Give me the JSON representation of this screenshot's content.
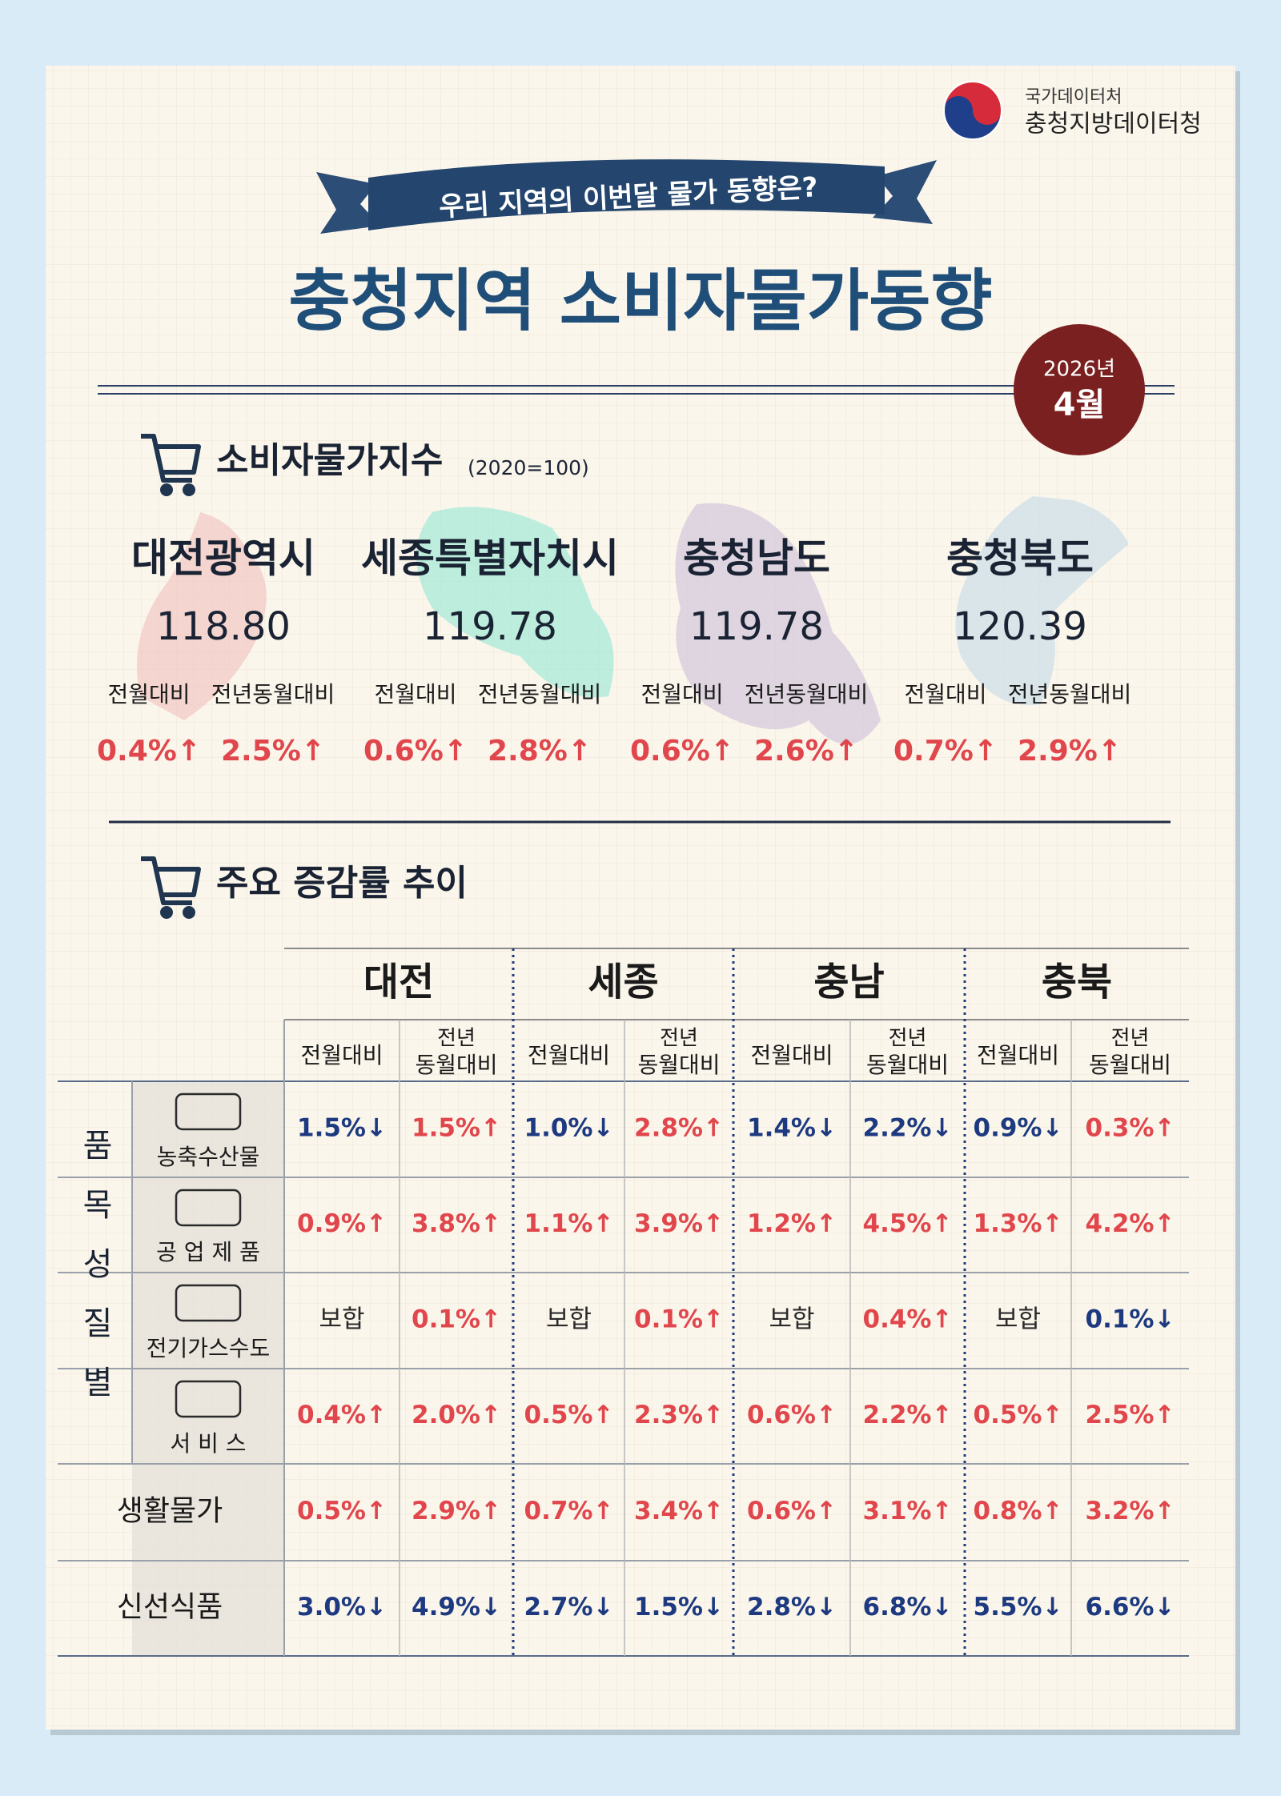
{
  "header": {
    "agency": "국가데이터처",
    "office": "충청지방데이터청",
    "banner": "우리 지역의 이번달 물가 동향은?",
    "title": "충청지역 소비자물가동향",
    "year": "2026년",
    "month": "4월"
  },
  "index_section": {
    "title": "소비자물가지수",
    "base": "(2020=100)",
    "labels": [
      "전월대비",
      "전년동월대비"
    ],
    "regions": [
      {
        "name": "대전광역시",
        "value": "118.80",
        "mom": "0.4%↑",
        "yoy": "2.5%↑"
      },
      {
        "name": "세종특별자치시",
        "value": "119.78",
        "mom": "0.6%↑",
        "yoy": "2.8%↑"
      },
      {
        "name": "충청남도",
        "value": "119.78",
        "mom": "0.6%↑",
        "yoy": "2.6%↑"
      },
      {
        "name": "충청북도",
        "value": "120.39",
        "mom": "0.7%↑",
        "yoy": "2.9%↑"
      }
    ]
  },
  "trend_section": {
    "title": "주요 증감률 추이",
    "regions": [
      "대전",
      "세종",
      "충남",
      "충북"
    ],
    "col_headers": [
      "전월대비",
      "전년",
      "동월대비"
    ],
    "group_label": "품목성질별",
    "rows": [
      {
        "label": "농축수산물",
        "values": [
          "1.5%↓",
          "1.5%↑",
          "1.0%↓",
          "2.8%↑",
          "1.4%↓",
          "2.2%↓",
          "0.9%↓",
          "0.3%↑"
        ]
      },
      {
        "label": "공 업 제 품",
        "values": [
          "0.9%↑",
          "3.8%↑",
          "1.1%↑",
          "3.9%↑",
          "1.2%↑",
          "4.5%↑",
          "1.3%↑",
          "4.2%↑"
        ]
      },
      {
        "label": "전기가스수도",
        "values": [
          "보합",
          "0.1%↑",
          "보합",
          "0.1%↑",
          "보합",
          "0.4%↑",
          "보합",
          "0.1%↓"
        ]
      },
      {
        "label": "서 비 스",
        "values": [
          "0.4%↑",
          "2.0%↑",
          "0.5%↑",
          "2.3%↑",
          "0.6%↑",
          "2.2%↑",
          "0.5%↑",
          "2.5%↑"
        ]
      },
      {
        "label": "생활물가",
        "values": [
          "0.5%↑",
          "2.9%↑",
          "0.7%↑",
          "3.4%↑",
          "0.6%↑",
          "3.1%↑",
          "0.8%↑",
          "3.2%↑"
        ]
      },
      {
        "label": "신선식품",
        "values": [
          "3.0%↓",
          "4.9%↓",
          "2.7%↓",
          "1.5%↓",
          "2.8%↓",
          "6.8%↓",
          "5.5%↓",
          "6.6%↓"
        ]
      }
    ]
  }
}
